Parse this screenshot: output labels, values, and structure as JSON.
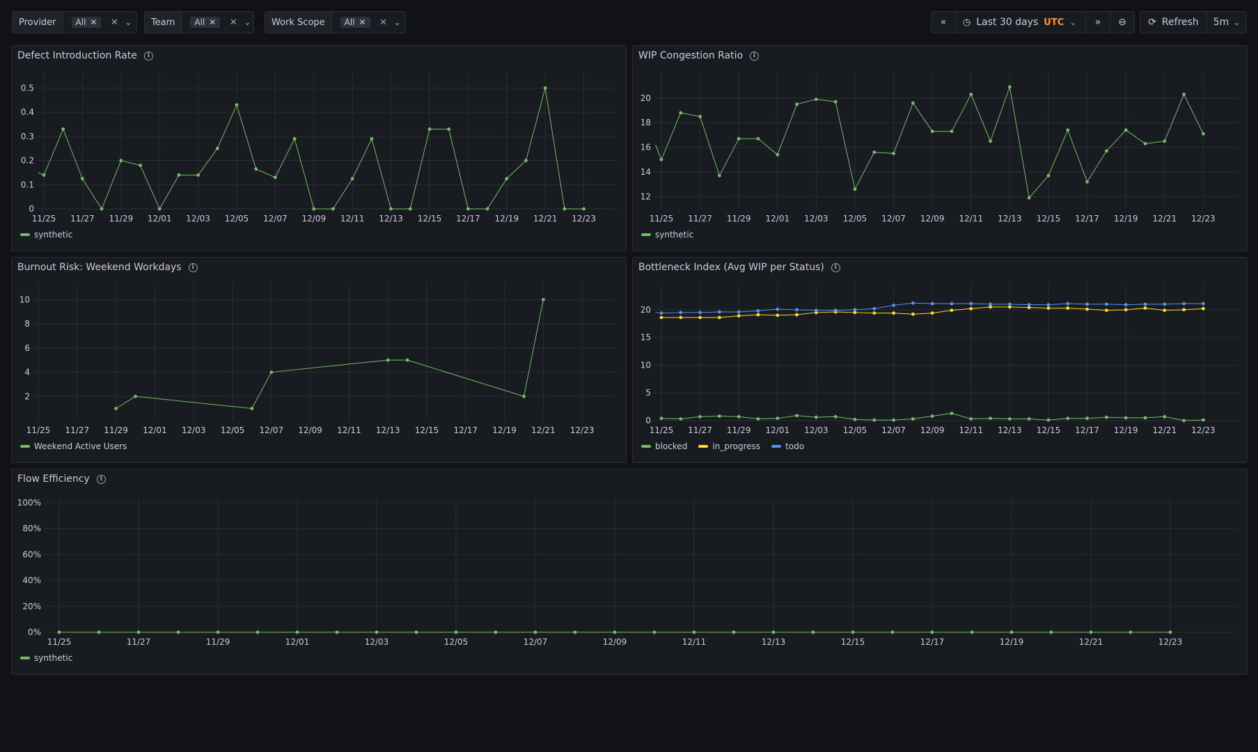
{
  "filters": [
    {
      "label": "Provider",
      "value": "All"
    },
    {
      "label": "Team",
      "value": "All"
    },
    {
      "label": "Work Scope",
      "value": "All"
    }
  ],
  "time": {
    "range": "Last 30 days",
    "tz": "UTC",
    "refresh": "Refresh",
    "interval": "5m"
  },
  "colors": {
    "green": "#73bf69",
    "yellow": "#fade2a",
    "blue": "#5794f2"
  },
  "panels": {
    "defect": {
      "title": "Defect Introduction Rate",
      "legend": [
        "synthetic"
      ],
      "chart_data": {
        "type": "line",
        "x_labels": [
          "11/25",
          "11/27",
          "11/29",
          "12/01",
          "12/03",
          "12/05",
          "12/07",
          "12/09",
          "12/11",
          "12/13",
          "12/15",
          "12/17",
          "12/19",
          "12/21",
          "12/23"
        ],
        "y_ticks": [
          "0",
          "0.1",
          "0.2",
          "0.3",
          "0.4",
          "0.5"
        ],
        "ylim": [
          0,
          0.55
        ],
        "series": [
          {
            "name": "synthetic",
            "color": "green",
            "points": [
              [
                -0.3,
                0.15
              ],
              [
                0,
                0.14
              ],
              [
                1,
                0.33
              ],
              [
                2,
                0.125
              ],
              [
                3,
                0
              ],
              [
                4,
                0.2
              ],
              [
                5,
                0.18
              ],
              [
                6,
                0
              ],
              [
                7,
                0.14
              ],
              [
                8,
                0.14
              ],
              [
                9,
                0.25
              ],
              [
                10,
                0.43
              ],
              [
                11,
                0.165
              ],
              [
                12,
                0.13
              ],
              [
                13,
                0.29
              ],
              [
                14,
                0
              ],
              [
                15,
                0
              ],
              [
                16,
                0.125
              ],
              [
                17,
                0.29
              ],
              [
                18,
                0
              ],
              [
                19,
                0
              ],
              [
                20,
                0.33
              ],
              [
                21,
                0.33
              ],
              [
                22,
                0
              ],
              [
                23,
                0
              ],
              [
                24,
                0.125
              ],
              [
                25,
                0.2
              ],
              [
                26,
                0.5
              ],
              [
                27,
                0
              ],
              [
                28,
                0
              ]
            ]
          }
        ]
      }
    },
    "wip": {
      "title": "WIP Congestion Ratio",
      "legend": [
        "synthetic"
      ],
      "chart_data": {
        "type": "line",
        "x_labels": [
          "11/25",
          "11/27",
          "11/29",
          "12/01",
          "12/03",
          "12/05",
          "12/07",
          "12/09",
          "12/11",
          "12/13",
          "12/15",
          "12/17",
          "12/19",
          "12/21",
          "12/23"
        ],
        "y_ticks": [
          "12",
          "14",
          "16",
          "18",
          "20"
        ],
        "ylim": [
          11,
          21.8
        ],
        "series": [
          {
            "name": "synthetic",
            "color": "green",
            "points": [
              [
                -0.3,
                16.2
              ],
              [
                0,
                15
              ],
              [
                1,
                18.8
              ],
              [
                2,
                18.5
              ],
              [
                3,
                13.7
              ],
              [
                4,
                16.7
              ],
              [
                5,
                16.7
              ],
              [
                6,
                15.4
              ],
              [
                7,
                19.5
              ],
              [
                8,
                19.9
              ],
              [
                9,
                19.7
              ],
              [
                10,
                12.6
              ],
              [
                11,
                15.6
              ],
              [
                12,
                15.5
              ],
              [
                13,
                19.6
              ],
              [
                14,
                17.3
              ],
              [
                15,
                17.3
              ],
              [
                16,
                20.3
              ],
              [
                17,
                16.5
              ],
              [
                18,
                20.9
              ],
              [
                19,
                11.9
              ],
              [
                20,
                13.7
              ],
              [
                21,
                17.4
              ],
              [
                22,
                13.2
              ],
              [
                23,
                15.7
              ],
              [
                24,
                17.4
              ],
              [
                25,
                16.3
              ],
              [
                26,
                16.5
              ],
              [
                27,
                20.3
              ],
              [
                28,
                17.1
              ]
            ]
          }
        ]
      }
    },
    "burnout": {
      "title": "Burnout Risk: Weekend Workdays",
      "legend": [
        "Weekend Active Users"
      ],
      "chart_data": {
        "type": "line",
        "x_labels": [
          "11/25",
          "11/27",
          "11/29",
          "12/01",
          "12/03",
          "12/05",
          "12/07",
          "12/09",
          "12/11",
          "12/13",
          "12/15",
          "12/17",
          "12/19",
          "12/21",
          "12/23"
        ],
        "y_ticks": [
          "2",
          "4",
          "6",
          "8",
          "10"
        ],
        "ylim": [
          0,
          11
        ],
        "series": [
          {
            "name": "Weekend Active Users",
            "color": "green",
            "points": [
              [
                4,
                1
              ],
              [
                5,
                2
              ],
              [
                11,
                1
              ],
              [
                12,
                4
              ],
              [
                18,
                5
              ],
              [
                19,
                5
              ],
              [
                25,
                2
              ],
              [
                26,
                10
              ]
            ]
          }
        ]
      }
    },
    "bottleneck": {
      "title": "Bottleneck Index (Avg WIP per Status)",
      "legend": [
        "blocked",
        "in_progress",
        "todo"
      ],
      "chart_data": {
        "type": "line",
        "x_labels": [
          "11/25",
          "11/27",
          "11/29",
          "12/01",
          "12/03",
          "12/05",
          "12/07",
          "12/09",
          "12/11",
          "12/13",
          "12/15",
          "12/17",
          "12/19",
          "12/21",
          "12/23"
        ],
        "y_ticks": [
          "0",
          "5",
          "10",
          "15",
          "20"
        ],
        "ylim": [
          0,
          24
        ],
        "series": [
          {
            "name": "blocked",
            "color": "green",
            "points": [
              [
                0,
                0.4
              ],
              [
                1,
                0.3
              ],
              [
                2,
                0.7
              ],
              [
                3,
                0.8
              ],
              [
                4,
                0.7
              ],
              [
                5,
                0.3
              ],
              [
                6,
                0.4
              ],
              [
                7,
                0.9
              ],
              [
                8,
                0.6
              ],
              [
                9,
                0.7
              ],
              [
                10,
                0.2
              ],
              [
                11,
                0.1
              ],
              [
                12,
                0.1
              ],
              [
                13,
                0.3
              ],
              [
                14,
                0.8
              ],
              [
                15,
                1.3
              ],
              [
                16,
                0.3
              ],
              [
                17,
                0.4
              ],
              [
                18,
                0.3
              ],
              [
                19,
                0.3
              ],
              [
                20,
                0.1
              ],
              [
                21,
                0.4
              ],
              [
                22,
                0.4
              ],
              [
                23,
                0.6
              ],
              [
                24,
                0.5
              ],
              [
                25,
                0.5
              ],
              [
                26,
                0.7
              ],
              [
                27,
                0
              ],
              [
                28,
                0.1
              ]
            ]
          },
          {
            "name": "in_progress",
            "color": "yellow",
            "points": [
              [
                0,
                18.6
              ],
              [
                1,
                18.6
              ],
              [
                2,
                18.6
              ],
              [
                3,
                18.6
              ],
              [
                4,
                18.9
              ],
              [
                5,
                19.1
              ],
              [
                6,
                19
              ],
              [
                7,
                19.1
              ],
              [
                8,
                19.5
              ],
              [
                9,
                19.6
              ],
              [
                10,
                19.5
              ],
              [
                11,
                19.4
              ],
              [
                12,
                19.4
              ],
              [
                13,
                19.2
              ],
              [
                14,
                19.4
              ],
              [
                15,
                19.9
              ],
              [
                16,
                20.2
              ],
              [
                17,
                20.5
              ],
              [
                18,
                20.5
              ],
              [
                19,
                20.4
              ],
              [
                20,
                20.3
              ],
              [
                21,
                20.3
              ],
              [
                22,
                20.1
              ],
              [
                23,
                19.9
              ],
              [
                24,
                20
              ],
              [
                25,
                20.3
              ],
              [
                26,
                19.9
              ],
              [
                27,
                20
              ],
              [
                28,
                20.2
              ]
            ]
          },
          {
            "name": "todo",
            "color": "blue",
            "points": [
              [
                -0.3,
                19.5
              ],
              [
                0,
                19.4
              ],
              [
                1,
                19.5
              ],
              [
                2,
                19.5
              ],
              [
                3,
                19.6
              ],
              [
                4,
                19.6
              ],
              [
                5,
                19.8
              ],
              [
                6,
                20.1
              ],
              [
                7,
                20
              ],
              [
                8,
                19.9
              ],
              [
                9,
                19.9
              ],
              [
                10,
                20
              ],
              [
                11,
                20.2
              ],
              [
                12,
                20.8
              ],
              [
                13,
                21.2
              ],
              [
                14,
                21.1
              ],
              [
                15,
                21.1
              ],
              [
                16,
                21.1
              ],
              [
                17,
                21
              ],
              [
                18,
                21
              ],
              [
                19,
                20.9
              ],
              [
                20,
                20.9
              ],
              [
                21,
                21.1
              ],
              [
                22,
                21
              ],
              [
                23,
                21
              ],
              [
                24,
                20.9
              ],
              [
                25,
                21
              ],
              [
                26,
                21
              ],
              [
                27,
                21.1
              ],
              [
                28,
                21.1
              ]
            ]
          }
        ]
      }
    },
    "flow": {
      "title": "Flow Efficiency",
      "legend": [
        "synthetic"
      ],
      "chart_data": {
        "type": "line",
        "x_labels": [
          "11/25",
          "11/27",
          "11/29",
          "12/01",
          "12/03",
          "12/05",
          "12/07",
          "12/09",
          "12/11",
          "12/13",
          "12/15",
          "12/17",
          "12/19",
          "12/21",
          "12/23"
        ],
        "y_ticks": [
          "0%",
          "20%",
          "40%",
          "60%",
          "80%",
          "100%"
        ],
        "ylim": [
          0,
          100
        ],
        "series": [
          {
            "name": "synthetic",
            "color": "green",
            "points": [
              [
                0,
                0
              ],
              [
                1,
                0
              ],
              [
                2,
                0
              ],
              [
                3,
                0
              ],
              [
                4,
                0
              ],
              [
                5,
                0
              ],
              [
                6,
                0
              ],
              [
                7,
                0
              ],
              [
                8,
                0
              ],
              [
                9,
                0
              ],
              [
                10,
                0
              ],
              [
                11,
                0
              ],
              [
                12,
                0
              ],
              [
                13,
                0
              ],
              [
                14,
                0
              ],
              [
                15,
                0
              ],
              [
                16,
                0
              ],
              [
                17,
                0
              ],
              [
                18,
                0
              ],
              [
                19,
                0
              ],
              [
                20,
                0
              ],
              [
                21,
                0
              ],
              [
                22,
                0
              ],
              [
                23,
                0
              ],
              [
                24,
                0
              ],
              [
                25,
                0
              ],
              [
                26,
                0
              ],
              [
                27,
                0
              ],
              [
                28,
                0
              ]
            ]
          }
        ]
      }
    }
  }
}
